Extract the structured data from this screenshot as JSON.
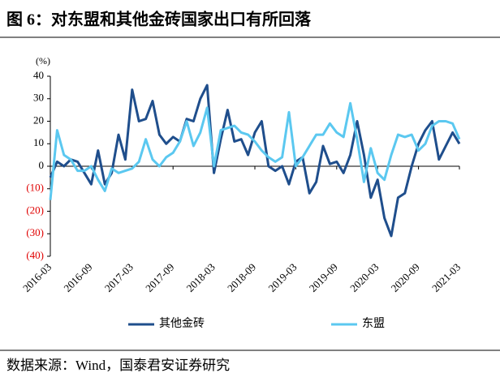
{
  "chart_data": {
    "type": "line",
    "title": "图 6：对东盟和其他金砖国家出口有所回落",
    "unit_label": "(%)",
    "source": "数据来源：Wind，国泰君安证券研究",
    "categories": [
      "2016-03",
      null,
      null,
      null,
      null,
      null,
      "2016-09",
      null,
      null,
      null,
      null,
      null,
      "2017-03",
      null,
      null,
      null,
      null,
      null,
      "2017-09",
      null,
      null,
      null,
      null,
      null,
      "2018-03",
      null,
      null,
      null,
      null,
      null,
      "2018-09",
      null,
      null,
      null,
      null,
      null,
      "2019-03",
      null,
      null,
      null,
      null,
      null,
      "2019-09",
      null,
      null,
      null,
      null,
      null,
      "2020-03",
      null,
      null,
      null,
      null,
      null,
      "2020-09",
      null,
      null,
      null,
      null,
      null,
      "2021-03"
    ],
    "series": [
      {
        "name": "其他金砖",
        "color": "#1f4e8c",
        "values": [
          -5,
          2,
          0,
          3,
          2,
          -3,
          -8,
          7,
          -8,
          -3,
          14,
          3,
          34,
          20,
          21,
          29,
          14,
          10,
          13,
          11,
          21,
          20,
          30,
          36,
          -3,
          12,
          25,
          11,
          12,
          5,
          15,
          20,
          0,
          -2,
          0,
          -8,
          2,
          4,
          -12,
          -7,
          9,
          1,
          2,
          -3,
          5,
          20,
          5,
          -14,
          -6,
          -23,
          -31,
          -14,
          -12,
          0,
          10,
          16,
          20,
          3,
          9,
          15,
          10
        ]
      },
      {
        "name": "东盟",
        "color": "#5bc8f0",
        "values": [
          -15,
          16,
          5,
          3,
          -2,
          -2,
          0,
          -6,
          -11,
          -1,
          -3,
          -2,
          -1,
          2,
          12,
          3,
          0,
          4,
          6,
          11,
          20,
          9,
          15,
          26,
          0,
          16,
          17,
          18,
          15,
          14,
          11,
          7,
          4,
          2,
          4,
          24,
          0,
          4,
          9,
          14,
          14,
          19,
          15,
          13,
          28,
          12,
          -7,
          8,
          -3,
          -6,
          5,
          14,
          13,
          14,
          7,
          10,
          18,
          20,
          20,
          19,
          12
        ]
      }
    ],
    "ylim": [
      -40,
      40
    ],
    "yticks": [
      {
        "value": -40,
        "label": "(40)"
      },
      {
        "value": -30,
        "label": "(30)"
      },
      {
        "value": -20,
        "label": "(20)"
      },
      {
        "value": -10,
        "label": "(10)"
      },
      0,
      10,
      20,
      30,
      40
    ],
    "negative_tick_color": "#e00000",
    "grid": false
  }
}
